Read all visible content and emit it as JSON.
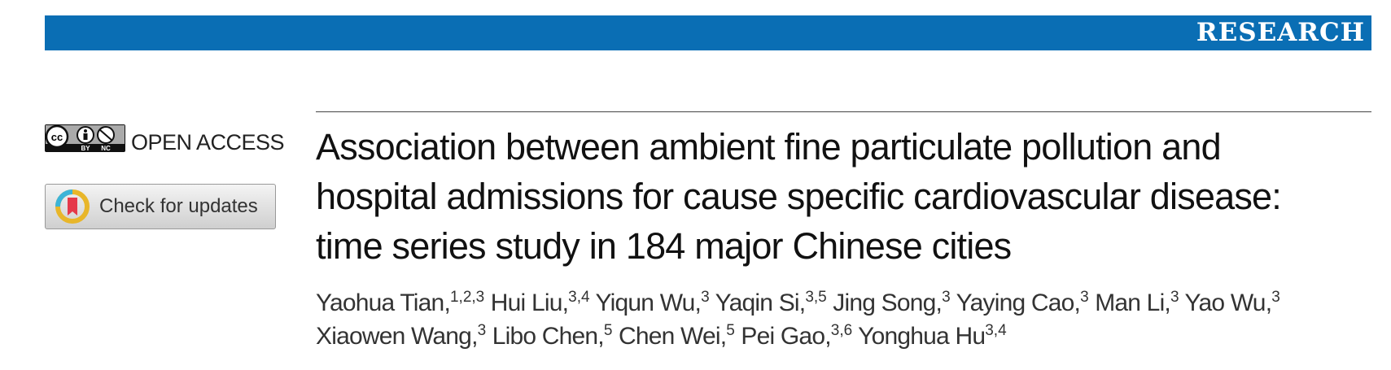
{
  "header": {
    "section": "RESEARCH"
  },
  "sidebar": {
    "license": [
      "BY",
      "NC"
    ],
    "open_access": "OPEN ACCESS",
    "check_updates": "Check for updates"
  },
  "article": {
    "title_lines": [
      "Association between ambient fine particulate pollution and",
      "hospital admissions for cause specific cardiovascular disease:",
      "time series study in 184 major Chinese cities"
    ],
    "author_lines": [
      [
        {
          "name": "Yaohua Tian,",
          "affiliations": "1,2,3"
        },
        {
          "name": "Hui Liu,",
          "affiliations": "3,4"
        },
        {
          "name": "Yiqun Wu,",
          "affiliations": "3"
        },
        {
          "name": "Yaqin Si,",
          "affiliations": "3,5"
        },
        {
          "name": "Jing Song,",
          "affiliations": "3"
        },
        {
          "name": "Yaying Cao,",
          "affiliations": "3"
        },
        {
          "name": "Man Li,",
          "affiliations": "3"
        },
        {
          "name": "Yao Wu,",
          "affiliations": "3"
        }
      ],
      [
        {
          "name": "Xiaowen Wang,",
          "affiliations": "3"
        },
        {
          "name": "Libo Chen,",
          "affiliations": "5"
        },
        {
          "name": "Chen Wei,",
          "affiliations": "5"
        },
        {
          "name": "Pei Gao,",
          "affiliations": "3,6"
        },
        {
          "name": "Yonghua Hu",
          "affiliations": "3,4"
        }
      ]
    ]
  }
}
